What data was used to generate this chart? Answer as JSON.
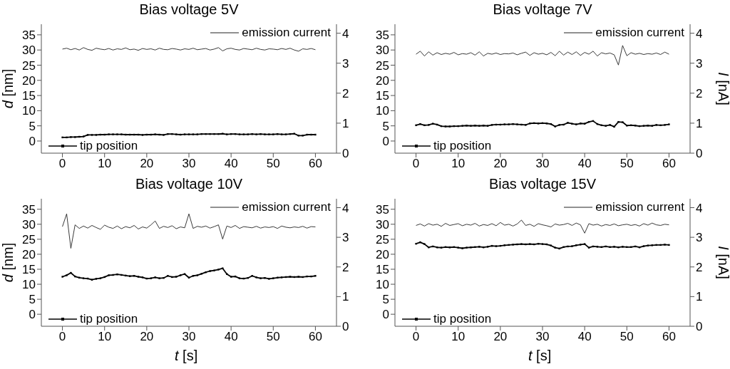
{
  "chart_data": [
    {
      "type": "line",
      "title": "Bias voltage 5V",
      "ylabel": "d [nm]",
      "legend": "right",
      "x": [
        0,
        1,
        2,
        3,
        4,
        5,
        6,
        7,
        8,
        9,
        10,
        11,
        12,
        13,
        14,
        15,
        16,
        17,
        18,
        19,
        20,
        21,
        22,
        23,
        24,
        25,
        26,
        27,
        28,
        29,
        30,
        31,
        32,
        33,
        34,
        35,
        36,
        37,
        38,
        39,
        40,
        41,
        42,
        43,
        44,
        45,
        46,
        47,
        48,
        49,
        50,
        51,
        52,
        53,
        54,
        55,
        56,
        57,
        58,
        59,
        60
      ],
      "xlim": [
        -5,
        65
      ],
      "xticks": [
        0,
        10,
        20,
        30,
        40,
        50,
        60
      ],
      "ylim": [
        -4,
        38.5
      ],
      "yticks": [
        0,
        5,
        10,
        15,
        20,
        25,
        30,
        35
      ],
      "y2lim": [
        0,
        4.3
      ],
      "y2ticks": [
        0,
        1,
        2,
        3,
        4
      ],
      "series": [
        {
          "name": "emission current",
          "color": "#222222",
          "axis": "y2",
          "marker": "none",
          "values": [
            3.47,
            3.5,
            3.45,
            3.49,
            3.44,
            3.52,
            3.46,
            3.43,
            3.5,
            3.47,
            3.45,
            3.49,
            3.44,
            3.48,
            3.46,
            3.51,
            3.45,
            3.47,
            3.43,
            3.49,
            3.46,
            3.48,
            3.44,
            3.5,
            3.46,
            3.45,
            3.49,
            3.47,
            3.44,
            3.48,
            3.46,
            3.5,
            3.45,
            3.47,
            3.49,
            3.44,
            3.47,
            3.52,
            3.41,
            3.48,
            3.5,
            3.46,
            3.44,
            3.49,
            3.47,
            3.45,
            3.5,
            3.46,
            3.44,
            3.48,
            3.47,
            3.45,
            3.49,
            3.46,
            3.5,
            3.44,
            3.4,
            3.48,
            3.46,
            3.49,
            3.45
          ]
        },
        {
          "name": "tip position",
          "color": "#000000",
          "marker": "square",
          "values": [
            1.2,
            1.2,
            1.3,
            1.3,
            1.4,
            1.5,
            2.0,
            2.0,
            2.0,
            2.1,
            2.1,
            2.2,
            2.2,
            2.2,
            2.2,
            2.1,
            2.1,
            2.1,
            2.1,
            2.0,
            2.1,
            2.1,
            2.2,
            2.1,
            2.0,
            2.3,
            2.3,
            2.2,
            2.1,
            2.2,
            2.2,
            2.2,
            2.2,
            2.3,
            2.3,
            2.3,
            2.3,
            2.3,
            2.4,
            2.2,
            2.3,
            2.3,
            2.2,
            2.2,
            2.2,
            2.3,
            2.2,
            2.3,
            2.2,
            2.2,
            2.2,
            2.3,
            2.2,
            2.2,
            2.3,
            2.4,
            1.8,
            1.8,
            2.1,
            2.1,
            2.1
          ]
        }
      ]
    },
    {
      "type": "line",
      "title": "Bias voltage 7V",
      "y2label": "I [nA]",
      "x": [
        0,
        1,
        2,
        3,
        4,
        5,
        6,
        7,
        8,
        9,
        10,
        11,
        12,
        13,
        14,
        15,
        16,
        17,
        18,
        19,
        20,
        21,
        22,
        23,
        24,
        25,
        26,
        27,
        28,
        29,
        30,
        31,
        32,
        33,
        34,
        35,
        36,
        37,
        38,
        39,
        40,
        41,
        42,
        43,
        44,
        45,
        46,
        47,
        48,
        49,
        50,
        51,
        52,
        53,
        54,
        55,
        56,
        57,
        58,
        59,
        60
      ],
      "xlim": [
        -5,
        65
      ],
      "xticks": [
        0,
        10,
        20,
        30,
        40,
        50,
        60
      ],
      "ylim": [
        -4,
        38.5
      ],
      "yticks": [
        0,
        5,
        10,
        15,
        20,
        25,
        30,
        35
      ],
      "y2lim": [
        0,
        4.3
      ],
      "y2ticks": [
        0,
        1,
        2,
        3,
        4
      ],
      "legend": "right",
      "series": [
        {
          "name": "emission current",
          "color": "#222222",
          "axis": "y2",
          "marker": "none",
          "values": [
            3.3,
            3.4,
            3.24,
            3.38,
            3.27,
            3.35,
            3.29,
            3.33,
            3.3,
            3.36,
            3.28,
            3.32,
            3.3,
            3.35,
            3.27,
            3.38,
            3.24,
            3.33,
            3.3,
            3.34,
            3.29,
            3.32,
            3.31,
            3.34,
            3.28,
            3.33,
            3.37,
            3.26,
            3.35,
            3.3,
            3.33,
            3.28,
            3.36,
            3.25,
            3.4,
            3.27,
            3.37,
            3.29,
            3.38,
            3.26,
            3.36,
            3.3,
            3.4,
            3.24,
            3.35,
            3.31,
            3.34,
            3.28,
            2.94,
            3.59,
            3.25,
            3.35,
            3.3,
            3.33,
            3.29,
            3.32,
            3.3,
            3.34,
            3.29,
            3.37,
            3.3
          ]
        },
        {
          "name": "tip position",
          "color": "#000000",
          "marker": "square",
          "values": [
            5.2,
            5.6,
            5.2,
            5.3,
            5.7,
            5.4,
            4.9,
            4.8,
            4.8,
            4.9,
            4.9,
            5.0,
            5.1,
            5.0,
            5.1,
            5.0,
            5.1,
            5.0,
            5.3,
            5.4,
            5.4,
            5.5,
            5.5,
            5.6,
            5.5,
            5.4,
            5.3,
            5.8,
            5.9,
            5.8,
            5.9,
            5.8,
            5.6,
            4.8,
            5.3,
            5.4,
            6.0,
            5.7,
            5.5,
            5.8,
            5.7,
            6.3,
            6.6,
            5.6,
            5.2,
            5.0,
            5.3,
            4.7,
            6.3,
            6.2,
            5.1,
            5.2,
            5.1,
            4.9,
            5.0,
            5.1,
            5.0,
            5.3,
            5.2,
            5.3,
            5.5
          ]
        }
      ]
    },
    {
      "type": "line",
      "title": "Bias voltage 10V",
      "xlabel": "t [s]",
      "ylabel": "d [nm]",
      "x": [
        0,
        1,
        2,
        3,
        4,
        5,
        6,
        7,
        8,
        9,
        10,
        11,
        12,
        13,
        14,
        15,
        16,
        17,
        18,
        19,
        20,
        21,
        22,
        23,
        24,
        25,
        26,
        27,
        28,
        29,
        30,
        31,
        32,
        33,
        34,
        35,
        36,
        37,
        38,
        39,
        40,
        41,
        42,
        43,
        44,
        45,
        46,
        47,
        48,
        49,
        50,
        51,
        52,
        53,
        54,
        55,
        56,
        57,
        58,
        59,
        60
      ],
      "xlim": [
        -5,
        65
      ],
      "xticks": [
        0,
        10,
        20,
        30,
        40,
        50,
        60
      ],
      "ylim": [
        -4,
        38.5
      ],
      "yticks": [
        0,
        5,
        10,
        15,
        20,
        25,
        30,
        35
      ],
      "y2lim": [
        0,
        4.3
      ],
      "y2ticks": [
        0,
        1,
        2,
        3,
        4
      ],
      "legend": "right",
      "series": [
        {
          "name": "emission current",
          "color": "#222222",
          "axis": "y2",
          "marker": "none",
          "values": [
            3.36,
            3.79,
            2.63,
            3.42,
            3.3,
            3.38,
            3.31,
            3.4,
            3.33,
            3.27,
            3.41,
            3.34,
            3.3,
            3.38,
            3.29,
            3.36,
            3.32,
            3.4,
            3.28,
            3.35,
            3.31,
            3.42,
            3.55,
            3.3,
            3.37,
            3.33,
            3.39,
            3.29,
            3.35,
            3.32,
            3.79,
            3.3,
            3.37,
            3.34,
            3.38,
            3.31,
            3.36,
            3.42,
            2.94,
            3.38,
            3.33,
            3.4,
            3.3,
            3.36,
            3.34,
            3.32,
            3.37,
            3.31,
            3.35,
            3.33,
            3.36,
            3.3,
            3.38,
            3.34,
            3.32,
            3.35,
            3.33,
            3.37,
            3.31,
            3.36,
            3.35
          ]
        },
        {
          "name": "tip position",
          "color": "#000000",
          "marker": "square",
          "values": [
            12.5,
            13.0,
            13.8,
            12.6,
            12.2,
            12.0,
            11.9,
            11.5,
            11.8,
            12.0,
            12.4,
            13.0,
            13.1,
            13.3,
            13.1,
            12.9,
            12.7,
            12.8,
            12.5,
            12.3,
            11.9,
            12.0,
            12.3,
            12.0,
            12.1,
            12.8,
            12.4,
            12.5,
            13.0,
            13.4,
            12.2,
            12.8,
            13.0,
            13.5,
            14.0,
            14.4,
            14.6,
            14.9,
            15.3,
            13.4,
            12.5,
            12.6,
            12.0,
            11.9,
            12.1,
            12.8,
            12.3,
            12.0,
            12.1,
            11.8,
            12.0,
            12.2,
            12.3,
            12.4,
            12.5,
            12.4,
            12.5,
            12.4,
            12.6,
            12.6,
            12.8
          ]
        }
      ]
    },
    {
      "type": "line",
      "title": "Bias voltage 15V",
      "xlabel": "t [s]",
      "y2label": "I [nA]",
      "x": [
        0,
        1,
        2,
        3,
        4,
        5,
        6,
        7,
        8,
        9,
        10,
        11,
        12,
        13,
        14,
        15,
        16,
        17,
        18,
        19,
        20,
        21,
        22,
        23,
        24,
        25,
        26,
        27,
        28,
        29,
        30,
        31,
        32,
        33,
        34,
        35,
        36,
        37,
        38,
        39,
        40,
        41,
        42,
        43,
        44,
        45,
        46,
        47,
        48,
        49,
        50,
        51,
        52,
        53,
        54,
        55,
        56,
        57,
        58,
        59,
        60
      ],
      "xlim": [
        -5,
        65
      ],
      "xticks": [
        0,
        10,
        20,
        30,
        40,
        50,
        60
      ],
      "ylim": [
        -4,
        38.5
      ],
      "yticks": [
        0,
        5,
        10,
        15,
        20,
        25,
        30,
        35
      ],
      "y2lim": [
        0,
        4.3
      ],
      "y2ticks": [
        0,
        1,
        2,
        3,
        4
      ],
      "legend": "right",
      "series": [
        {
          "name": "emission current",
          "color": "#222222",
          "axis": "y2",
          "marker": "none",
          "values": [
            3.4,
            3.45,
            3.38,
            3.46,
            3.41,
            3.44,
            3.37,
            3.47,
            3.4,
            3.43,
            3.46,
            3.39,
            3.44,
            3.41,
            3.47,
            3.38,
            3.43,
            3.4,
            3.46,
            3.39,
            3.5,
            3.41,
            3.44,
            3.38,
            3.45,
            3.58,
            3.4,
            3.44,
            3.37,
            3.46,
            3.42,
            3.39,
            3.35,
            3.45,
            3.41,
            3.43,
            3.47,
            3.4,
            3.48,
            3.42,
            3.14,
            3.46,
            3.41,
            3.44,
            3.38,
            3.43,
            3.4,
            3.45,
            3.39,
            3.42,
            3.44,
            3.4,
            3.43,
            3.38,
            3.46,
            3.41,
            3.48,
            3.42,
            3.4,
            3.44,
            3.42
          ]
        },
        {
          "name": "tip position",
          "color": "#000000",
          "marker": "square",
          "values": [
            23.5,
            24.0,
            23.4,
            22.3,
            22.6,
            22.3,
            22.2,
            22.4,
            22.3,
            22.4,
            22.2,
            22.0,
            22.2,
            22.3,
            22.4,
            22.5,
            22.3,
            22.5,
            22.8,
            22.7,
            22.8,
            23.0,
            23.1,
            23.2,
            23.3,
            23.4,
            23.3,
            23.4,
            23.3,
            23.5,
            23.4,
            23.3,
            22.9,
            22.2,
            21.9,
            22.4,
            22.6,
            22.7,
            23.0,
            23.2,
            23.4,
            22.2,
            22.6,
            22.5,
            22.4,
            22.6,
            22.4,
            22.5,
            22.3,
            22.5,
            22.4,
            22.4,
            22.6,
            22.3,
            22.7,
            22.9,
            23.0,
            23.1,
            23.1,
            23.2,
            23.1
          ]
        }
      ]
    }
  ]
}
